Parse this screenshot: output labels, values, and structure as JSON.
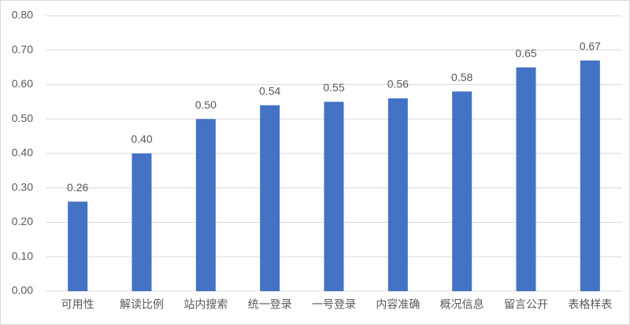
{
  "chart_data": {
    "type": "bar",
    "categories": [
      "可用性",
      "解读比例",
      "站内搜索",
      "统一登录",
      "一号登录",
      "内容准确",
      "概况信息",
      "留言公开",
      "表格样表"
    ],
    "values": [
      0.26,
      0.4,
      0.5,
      0.54,
      0.55,
      0.56,
      0.58,
      0.65,
      0.67
    ],
    "value_labels": [
      "0.26",
      "0.40",
      "0.50",
      "0.54",
      "0.55",
      "0.56",
      "0.58",
      "0.65",
      "0.67"
    ],
    "color": "#4472c4",
    "ylim": [
      0,
      0.8
    ],
    "yticks": [
      {
        "value": 0,
        "label": "0.00"
      },
      {
        "value": 0.1,
        "label": "0.10"
      },
      {
        "value": 0.2,
        "label": "0.20"
      },
      {
        "value": 0.3,
        "label": "0.30"
      },
      {
        "value": 0.4,
        "label": "0.40"
      },
      {
        "value": 0.5,
        "label": "0.50"
      },
      {
        "value": 0.6,
        "label": "0.60"
      },
      {
        "value": 0.7,
        "label": "0.70"
      },
      {
        "value": 0.8,
        "label": "0.80"
      }
    ],
    "grid": true
  }
}
